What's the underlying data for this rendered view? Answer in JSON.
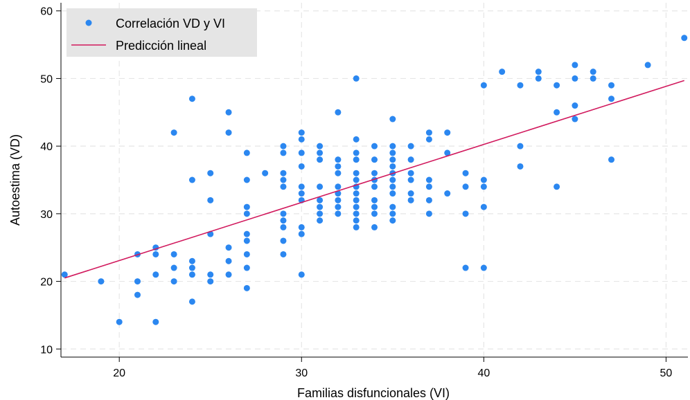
{
  "chart_data": {
    "type": "scatter",
    "xlabel": "Familias disfuncionales (VI)",
    "ylabel": "Autoestima (VD)",
    "xlim": [
      16.8,
      51.2
    ],
    "ylim": [
      8.8,
      61.2
    ],
    "xticks": [
      20,
      30,
      40,
      50
    ],
    "yticks": [
      10,
      20,
      30,
      40,
      50,
      60
    ],
    "grid": true,
    "legend_position": "top-left",
    "colors": {
      "points": "#2b87f0",
      "line": "#d1195d",
      "legend_bg": "#e5e5e5",
      "grid": "#e6e6e6"
    },
    "series": [
      {
        "name": "Correlación VD y VI",
        "kind": "points",
        "points": [
          [
            17,
            21
          ],
          [
            19,
            20
          ],
          [
            20,
            14
          ],
          [
            21,
            24
          ],
          [
            21,
            20
          ],
          [
            21,
            18
          ],
          [
            22,
            25
          ],
          [
            22,
            24
          ],
          [
            22,
            21
          ],
          [
            22,
            14
          ],
          [
            23,
            42
          ],
          [
            23,
            24
          ],
          [
            23,
            22
          ],
          [
            23,
            20
          ],
          [
            24,
            47
          ],
          [
            24,
            35
          ],
          [
            24,
            23
          ],
          [
            24,
            22
          ],
          [
            24,
            21
          ],
          [
            24,
            17
          ],
          [
            25,
            36
          ],
          [
            25,
            32
          ],
          [
            25,
            27
          ],
          [
            25,
            21
          ],
          [
            25,
            20
          ],
          [
            26,
            45
          ],
          [
            26,
            42
          ],
          [
            26,
            25
          ],
          [
            26,
            23
          ],
          [
            26,
            21
          ],
          [
            27,
            39
          ],
          [
            27,
            35
          ],
          [
            27,
            31
          ],
          [
            27,
            30
          ],
          [
            27,
            27
          ],
          [
            27,
            26
          ],
          [
            27,
            24
          ],
          [
            27,
            22
          ],
          [
            27,
            19
          ],
          [
            28,
            36
          ],
          [
            29,
            40
          ],
          [
            29,
            39
          ],
          [
            29,
            36
          ],
          [
            29,
            35
          ],
          [
            29,
            34
          ],
          [
            29,
            30
          ],
          [
            29,
            29
          ],
          [
            29,
            28
          ],
          [
            29,
            26
          ],
          [
            29,
            24
          ],
          [
            30,
            42
          ],
          [
            30,
            41
          ],
          [
            30,
            39
          ],
          [
            30,
            37
          ],
          [
            30,
            34
          ],
          [
            30,
            33
          ],
          [
            30,
            32
          ],
          [
            30,
            28
          ],
          [
            30,
            27
          ],
          [
            30,
            21
          ],
          [
            31,
            40
          ],
          [
            31,
            39
          ],
          [
            31,
            38
          ],
          [
            31,
            34
          ],
          [
            31,
            32
          ],
          [
            31,
            31
          ],
          [
            31,
            30
          ],
          [
            31,
            29
          ],
          [
            32,
            45
          ],
          [
            32,
            38
          ],
          [
            32,
            37
          ],
          [
            32,
            36
          ],
          [
            32,
            34
          ],
          [
            32,
            33
          ],
          [
            32,
            32
          ],
          [
            32,
            31
          ],
          [
            32,
            30
          ],
          [
            33,
            50
          ],
          [
            33,
            41
          ],
          [
            33,
            39
          ],
          [
            33,
            38
          ],
          [
            33,
            36
          ],
          [
            33,
            35
          ],
          [
            33,
            34
          ],
          [
            33,
            33
          ],
          [
            33,
            32
          ],
          [
            33,
            31
          ],
          [
            33,
            30
          ],
          [
            33,
            29
          ],
          [
            33,
            28
          ],
          [
            34,
            40
          ],
          [
            34,
            38
          ],
          [
            34,
            36
          ],
          [
            34,
            35
          ],
          [
            34,
            34
          ],
          [
            34,
            32
          ],
          [
            34,
            31
          ],
          [
            34,
            30
          ],
          [
            34,
            28
          ],
          [
            35,
            44
          ],
          [
            35,
            40
          ],
          [
            35,
            39
          ],
          [
            35,
            38
          ],
          [
            35,
            37
          ],
          [
            35,
            36
          ],
          [
            35,
            35
          ],
          [
            35,
            34
          ],
          [
            35,
            33
          ],
          [
            35,
            31
          ],
          [
            35,
            30
          ],
          [
            35,
            29
          ],
          [
            36,
            40
          ],
          [
            36,
            38
          ],
          [
            36,
            36
          ],
          [
            36,
            35
          ],
          [
            36,
            33
          ],
          [
            36,
            32
          ],
          [
            37,
            42
          ],
          [
            37,
            41
          ],
          [
            37,
            35
          ],
          [
            37,
            34
          ],
          [
            37,
            32
          ],
          [
            37,
            30
          ],
          [
            38,
            42
          ],
          [
            38,
            39
          ],
          [
            38,
            33
          ],
          [
            39,
            36
          ],
          [
            39,
            34
          ],
          [
            39,
            30
          ],
          [
            39,
            22
          ],
          [
            40,
            49
          ],
          [
            40,
            35
          ],
          [
            40,
            34
          ],
          [
            40,
            31
          ],
          [
            40,
            22
          ],
          [
            41,
            51
          ],
          [
            42,
            49
          ],
          [
            42,
            40
          ],
          [
            42,
            37
          ],
          [
            43,
            51
          ],
          [
            43,
            50
          ],
          [
            44,
            49
          ],
          [
            44,
            45
          ],
          [
            44,
            34
          ],
          [
            45,
            52
          ],
          [
            45,
            50
          ],
          [
            45,
            46
          ],
          [
            45,
            44
          ],
          [
            46,
            51
          ],
          [
            46,
            50
          ],
          [
            47,
            49
          ],
          [
            47,
            47
          ],
          [
            47,
            38
          ],
          [
            49,
            52
          ],
          [
            51,
            56
          ]
        ]
      },
      {
        "name": "Predicción lineal",
        "kind": "line",
        "x": [
          17,
          51
        ],
        "y": [
          20.5,
          49.7
        ]
      }
    ]
  }
}
